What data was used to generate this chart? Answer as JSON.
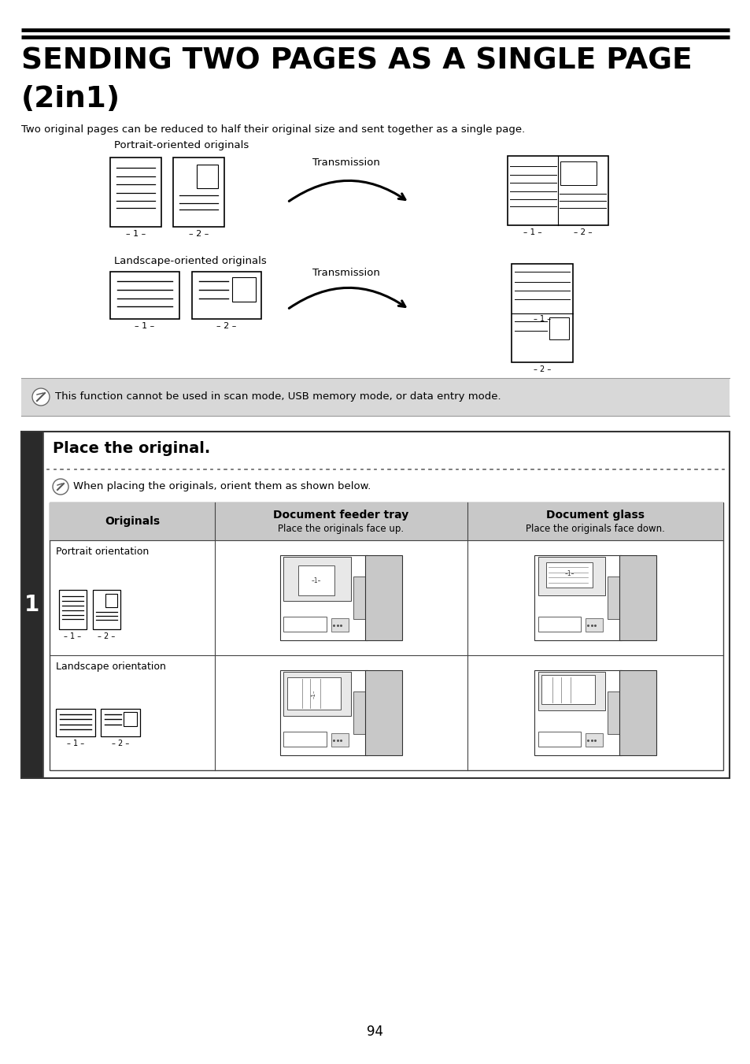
{
  "title_line1": "SENDING TWO PAGES AS A SINGLE PAGE",
  "title_line2": "(2in1)",
  "subtitle": "Two original pages can be reduced to half their original size and sent together as a single page.",
  "portrait_label": "Portrait-oriented originals",
  "landscape_label": "Landscape-oriented originals",
  "transmission_label": "Transmission",
  "note_text": "This function cannot be used in scan mode, USB memory mode, or data entry mode.",
  "step_title": "Place the original.",
  "step_note": "When placing the originals, orient them as shown below.",
  "col1_header": "Originals",
  "col2_header": "Document feeder tray",
  "col2_sub": "Place the originals face up.",
  "col3_header": "Document glass",
  "col3_sub": "Place the originals face down.",
  "row1_label": "Portrait orientation",
  "row2_label": "Landscape orientation",
  "page_number": "94",
  "bg_color": "#ffffff",
  "step_bar_color": "#2a2a2a",
  "note_bg": "#d8d8d8",
  "table_header_bg": "#c8c8c8"
}
